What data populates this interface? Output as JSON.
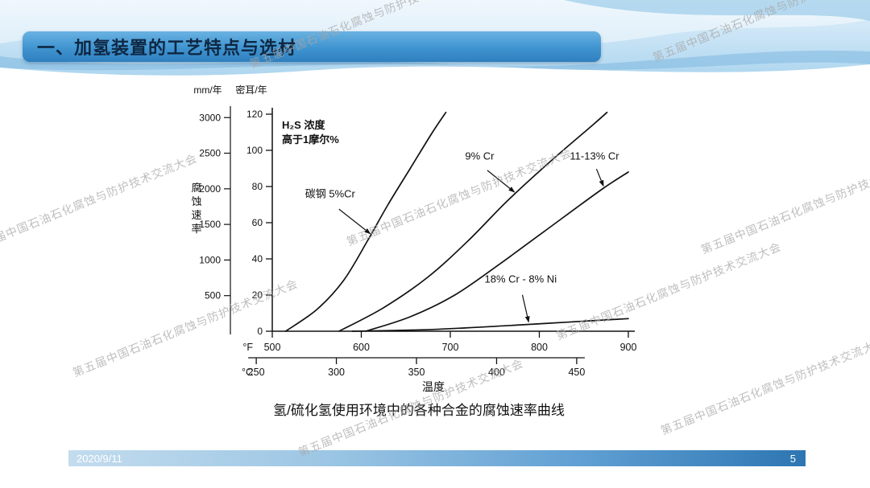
{
  "slide": {
    "title": "一、加氢装置的工艺特点与选材",
    "caption": "氢/硫化氢使用环境中的各种合金的腐蚀速率曲线",
    "watermark": "第五届中国石油石化腐蚀与防护技术交流大会",
    "footer": {
      "date": "2020/9/11",
      "page": "5"
    }
  },
  "colors": {
    "title_bar": "#3f94d0",
    "title_text": "#0e2742",
    "header_band": "#aed6ef",
    "footer_start": "#c3dcee",
    "footer_end": "#2d76b2",
    "curve_stroke": "#111111",
    "watermark": "#a6a6a6"
  },
  "chart_data": {
    "type": "line",
    "title": "",
    "xlabel": "温度",
    "ylabel": "腐蚀速率",
    "grid": false,
    "x_axis": {
      "unit_top": "°F",
      "ticks_f": [
        500,
        600,
        700,
        800,
        900
      ],
      "unit_bottom": "°C",
      "ticks_c": [
        250,
        300,
        350,
        400,
        450
      ],
      "xlim_f": [
        500,
        900
      ]
    },
    "y_axis": {
      "left_header": "mm/年",
      "mm_ticks": [
        3000,
        2500,
        2000,
        1500,
        1000,
        500
      ],
      "right_header": "密耳/年",
      "mil_ticks": [
        120,
        100,
        80,
        60,
        40,
        20,
        0
      ],
      "ylim_mils": [
        0,
        120
      ]
    },
    "annotation": [
      "H₂S 浓度",
      "高于1摩尔%"
    ],
    "series": [
      {
        "name": "碳钢 5%Cr",
        "points_f_mils": [
          [
            515,
            0
          ],
          [
            550,
            12
          ],
          [
            580,
            28
          ],
          [
            607,
            50
          ],
          [
            630,
            70
          ],
          [
            655,
            90
          ],
          [
            680,
            110
          ],
          [
            695,
            121
          ]
        ]
      },
      {
        "name": "9% Cr",
        "points_f_mils": [
          [
            575,
            0
          ],
          [
            625,
            13
          ],
          [
            675,
            30
          ],
          [
            720,
            50
          ],
          [
            764,
            72
          ],
          [
            815,
            95
          ],
          [
            860,
            114
          ],
          [
            876,
            121
          ]
        ]
      },
      {
        "name": "11-13% Cr",
        "points_f_mils": [
          [
            605,
            0
          ],
          [
            655,
            8
          ],
          [
            705,
            20
          ],
          [
            755,
            37
          ],
          [
            805,
            55
          ],
          [
            869,
            78
          ],
          [
            900,
            88
          ]
        ]
      },
      {
        "name": "18% Cr - 8% Ni",
        "points_f_mils": [
          [
            590,
            0
          ],
          [
            680,
            1
          ],
          [
            760,
            3
          ],
          [
            830,
            5
          ],
          [
            900,
            7
          ]
        ]
      }
    ],
    "labels": [
      {
        "text": "碳钢 5%Cr",
        "f": 565,
        "mils": 74,
        "series": 0,
        "target_f": 610
      },
      {
        "text": "9% Cr",
        "f": 733,
        "mils": 95,
        "series": 1,
        "target_f": 772
      },
      {
        "text": "11-13% Cr",
        "f": 862,
        "mils": 95,
        "series": 2,
        "target_f": 872
      },
      {
        "text": "18% Cr - 8% Ni",
        "f": 779,
        "mils": 27,
        "series": 3,
        "target_f": 788
      }
    ]
  }
}
